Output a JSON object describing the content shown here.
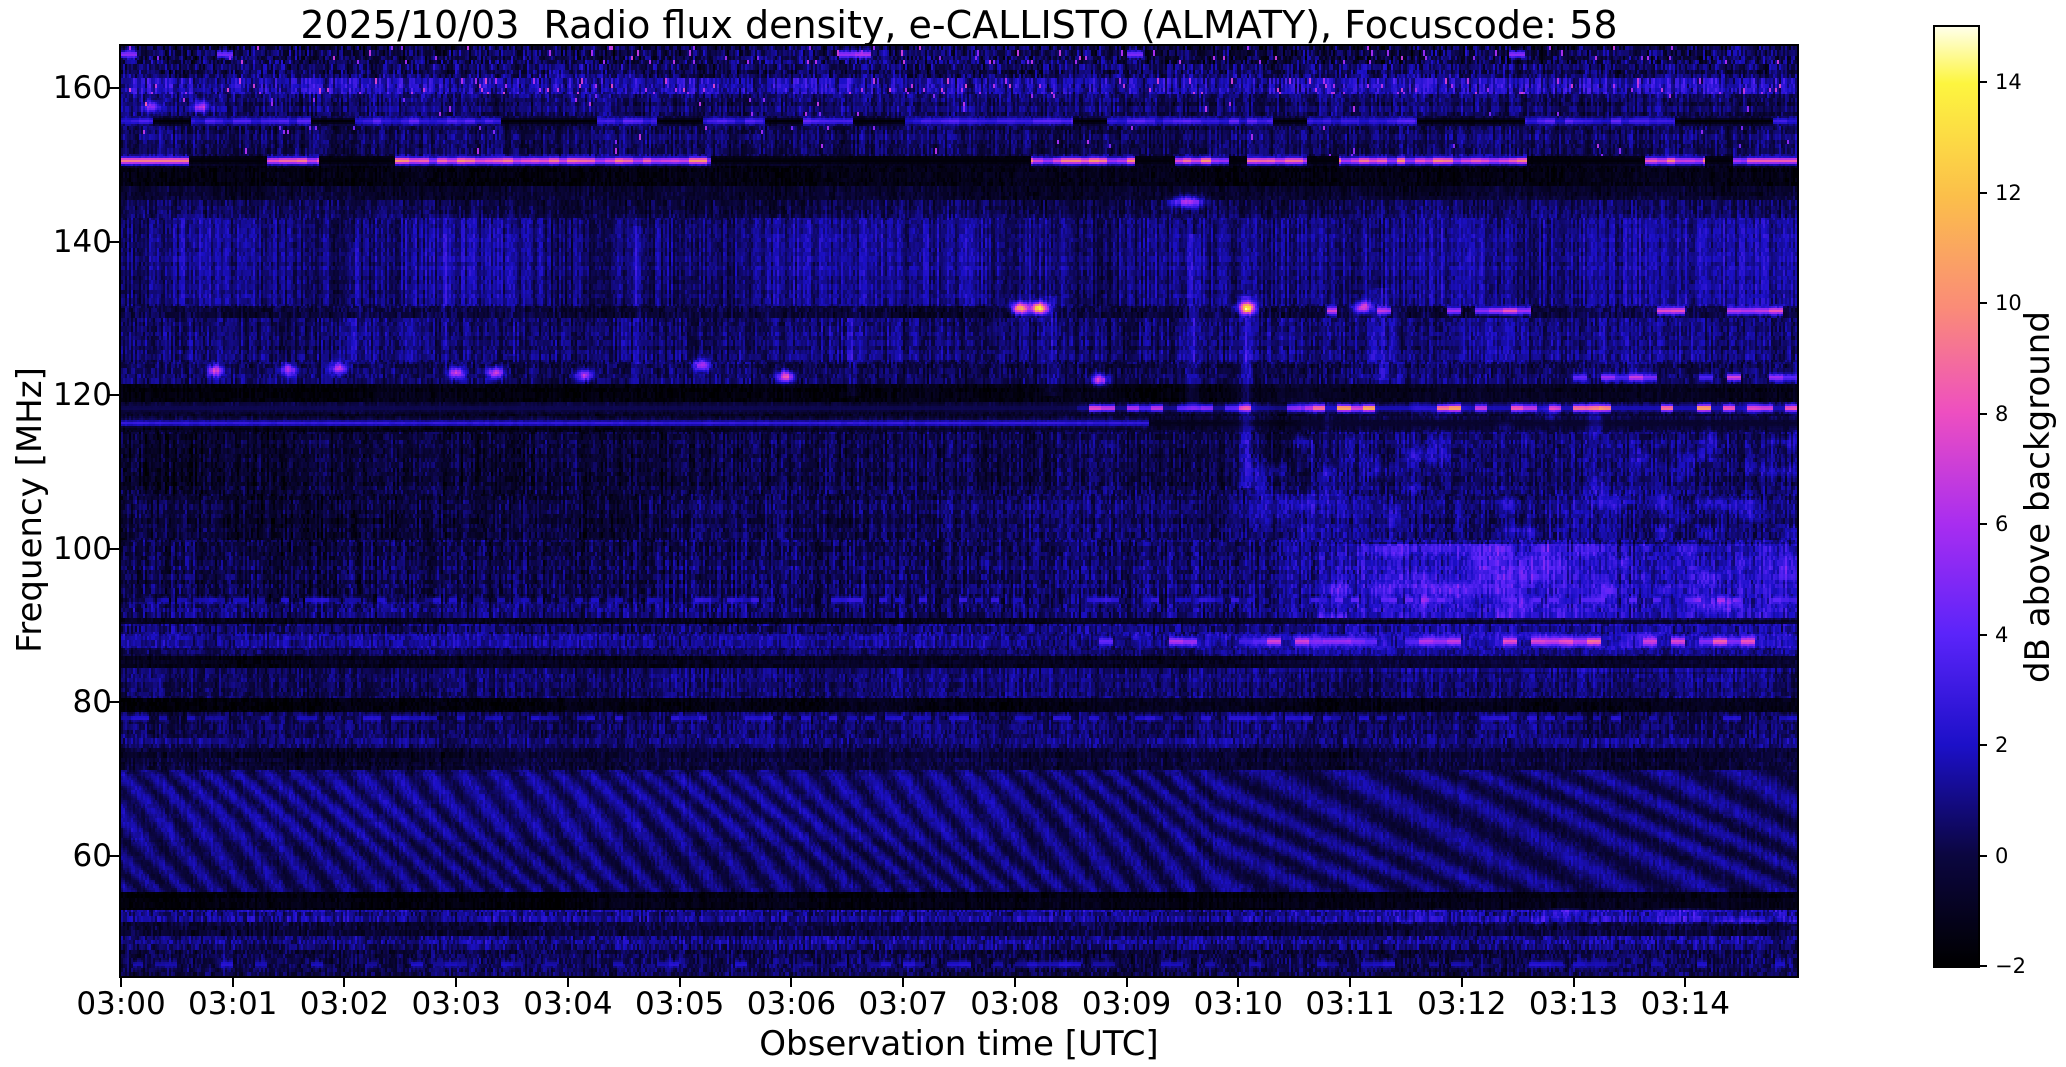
{
  "chart_data": {
    "type": "heatmap",
    "title": "2025/10/03  Radio flux density, e-CALLISTO (ALMATY), Focuscode: 58",
    "xlabel": "Observation time [UTC]",
    "ylabel": "Frequency [MHz]",
    "colorbar_label": "dB above background",
    "x_ticks": [
      "03:00",
      "03:01",
      "03:02",
      "03:03",
      "03:04",
      "03:05",
      "03:06",
      "03:07",
      "03:08",
      "03:09",
      "03:10",
      "03:11",
      "03:12",
      "03:13",
      "03:14"
    ],
    "y_ticks": [
      160,
      140,
      120,
      100,
      80,
      60
    ],
    "colorbar_ticks": [
      {
        "label": "14",
        "value": 14
      },
      {
        "label": "12",
        "value": 12
      },
      {
        "label": "10",
        "value": 10
      },
      {
        "label": "8",
        "value": 8
      },
      {
        "label": "6",
        "value": 6
      },
      {
        "label": "4",
        "value": 4
      },
      {
        "label": "2",
        "value": 2
      },
      {
        "label": "0",
        "value": 0
      },
      {
        "label": "−2",
        "value": -2
      }
    ],
    "time_range_min": [
      0,
      15
    ],
    "freq_range_mhz": [
      44.3,
      165.5
    ],
    "value_range_db": [
      -2,
      15
    ],
    "legend_position": "right-colorbar",
    "grid": false,
    "colormap_stops": [
      [
        0,
        "#000000"
      ],
      [
        0.118,
        "#0b0640"
      ],
      [
        0.235,
        "#1c10c8"
      ],
      [
        0.353,
        "#5b24fa"
      ],
      [
        0.47,
        "#a82df0"
      ],
      [
        0.59,
        "#ee4fc0"
      ],
      [
        0.7,
        "#fa8b78"
      ],
      [
        0.82,
        "#fbbf4a"
      ],
      [
        0.94,
        "#fdf53f"
      ],
      [
        1,
        "#ffffe8"
      ]
    ],
    "spectrogram_model": {
      "channel_mhz": 0.61,
      "bands": [
        {
          "f0": 163.2,
          "f1": 165.5,
          "base": 0.15,
          "col": 0.9,
          "pix": 1.3,
          "sp": {
            "p": 0.02,
            "v": 6.0
          }
        },
        {
          "f0": 161.3,
          "f1": 163.2,
          "base": 0.5,
          "col": 1.0,
          "pix": 1.0
        },
        {
          "f0": 159.3,
          "f1": 161.3,
          "base": 1.7,
          "col": 1.3,
          "pix": 0.8,
          "sp": {
            "p": 0.03,
            "v": 6.5
          }
        },
        {
          "f0": 156.4,
          "f1": 159.3,
          "base": 0.5,
          "col": 0.9,
          "pix": 0.7,
          "sp": {
            "p": 0.008,
            "v": 5.5
          }
        },
        {
          "f0": 155.0,
          "f1": 156.4,
          "base": 0.3,
          "col": 0.6,
          "pix": 0.5
        },
        {
          "f0": 151.2,
          "f1": 155.0,
          "base": 0.45,
          "col": 0.85,
          "pix": 0.7,
          "sp": {
            "p": 0.006,
            "v": 5.5
          }
        },
        {
          "f0": 149.8,
          "f1": 151.2,
          "base": -1.0,
          "col": 0.3,
          "pix": 0.4
        },
        {
          "f0": 147.3,
          "f1": 149.8,
          "base": -1.5,
          "col": 0.35,
          "pix": 0.45
        },
        {
          "f0": 145.5,
          "f1": 147.3,
          "base": -0.4,
          "col": 0.5,
          "pix": 0.5
        },
        {
          "f0": 143.0,
          "f1": 145.5,
          "base": 0.25,
          "col": 0.8,
          "pix": 0.6
        },
        {
          "f0": 131.6,
          "f1": 143.0,
          "base": 0.9,
          "col": 1.0,
          "pix": 0.6,
          "slow": 0.5
        },
        {
          "f0": 130.1,
          "f1": 131.6,
          "base": -0.2,
          "col": 0.6,
          "pix": 0.7
        },
        {
          "f0": 124.2,
          "f1": 130.1,
          "base": 0.7,
          "col": 0.9,
          "pix": 0.7
        },
        {
          "f0": 121.5,
          "f1": 124.2,
          "base": 0.2,
          "col": 0.7,
          "pix": 0.8
        },
        {
          "f0": 119.0,
          "f1": 121.5,
          "base": -1.5,
          "col": 0.3,
          "pix": 0.4
        },
        {
          "f0": 117.5,
          "f1": 119.0,
          "base": -0.5,
          "col": 0.4,
          "pix": 0.5
        },
        {
          "f0": 115.2,
          "f1": 117.5,
          "base": -0.5,
          "col": 0.4,
          "pix": 0.5
        },
        {
          "f0": 107.0,
          "f1": 115.2,
          "base": 0.15,
          "col": 0.8,
          "pix": 0.8
        },
        {
          "f0": 101.0,
          "f1": 107.0,
          "base": 0.35,
          "col": 0.8,
          "pix": 0.8
        },
        {
          "f0": 91.0,
          "f1": 101.0,
          "base": 0.55,
          "col": 0.9,
          "pix": 0.9
        },
        {
          "f0": 90.3,
          "f1": 91.0,
          "base": -1.0,
          "col": 0.3,
          "pix": 0.4
        },
        {
          "f0": 88.9,
          "f1": 90.3,
          "base": 0.8,
          "col": 0.8,
          "pix": 0.8
        },
        {
          "f0": 87.0,
          "f1": 88.9,
          "base": 1.0,
          "col": 0.7,
          "pix": 0.7
        },
        {
          "f0": 85.9,
          "f1": 87.0,
          "base": 0.4,
          "col": 0.6,
          "pix": 0.6
        },
        {
          "f0": 84.5,
          "f1": 85.9,
          "base": -1.1,
          "col": 0.3,
          "pix": 0.4
        },
        {
          "f0": 80.5,
          "f1": 84.5,
          "base": 0.5,
          "col": 0.7,
          "pix": 0.7
        },
        {
          "f0": 78.6,
          "f1": 80.5,
          "base": -1.2,
          "col": 0.3,
          "pix": 0.4
        },
        {
          "f0": 75.2,
          "f1": 78.6,
          "base": 0.5,
          "col": 0.7,
          "pix": 0.7
        },
        {
          "f0": 74.0,
          "f1": 75.2,
          "base": 0.9,
          "col": 0.6,
          "pix": 0.7
        },
        {
          "f0": 71.2,
          "f1": 74.0,
          "base": -0.3,
          "col": 0.5,
          "pix": 0.6
        },
        {
          "f0": 55.3,
          "f1": 71.2,
          "base": 0.6,
          "col": 0.3,
          "pix": 0.45,
          "ripple": true
        },
        {
          "f0": 53.0,
          "f1": 55.3,
          "base": -1.6,
          "col": 0.3,
          "pix": 0.35
        },
        {
          "f0": 51.3,
          "f1": 53.0,
          "base": 1.2,
          "col": 0.7,
          "pix": 1.0
        },
        {
          "f0": 49.6,
          "f1": 51.3,
          "base": -0.4,
          "col": 0.5,
          "pix": 0.7
        },
        {
          "f0": 47.8,
          "f1": 49.6,
          "base": 0.9,
          "col": 0.6,
          "pix": 1.0
        },
        {
          "f0": 44.3,
          "f1": 47.8,
          "base": 0.1,
          "col": 0.6,
          "pix": 0.9
        }
      ],
      "ripple": {
        "f0": 55.3,
        "fP": 4.5,
        "tP": 0.28,
        "tPLate": 0.6,
        "lateT": 9.8,
        "amp": 0.85,
        "wob": {
          "a": 1.2,
          "tk": 1.6,
          "fk": 0.33
        },
        "bright": {
          "f0": 62,
          "f1": 70.5,
          "t1": 8,
          "add": 0.3
        }
      },
      "lines": [
        {
          "f": 155.7,
          "hw": 0.5,
          "kind": "gapped",
          "vHi": 3.2,
          "vR": 1.2,
          "vLo": -1.8,
          "chunk": 2.2,
          "duty": 0.62,
          "seed": 11
        },
        {
          "f": 150.55,
          "hw": 0.55,
          "kind": "gapped",
          "vHi": 8.0,
          "vR": 2.5,
          "vLo": -1.7,
          "chunk": 2.6,
          "duty": 0.55,
          "seed": 12,
          "solid": [
            [
              0,
              0.6,
              9.5
            ],
            [
              14.55,
              15,
              8.5
            ]
          ]
        },
        {
          "f": 118.3,
          "hw": 0.5,
          "kind": "dashlate",
          "tOn": 8.55,
          "vEarly": 0.3,
          "vHi": 6.6,
          "vR": 2.8,
          "vLo": 1.3,
          "dash": 9,
          "duty": 0.55,
          "boostT": 10.6,
          "boost": 1.6,
          "seed": 13
        },
        {
          "f": 116.35,
          "hw": 0.45,
          "kind": "fade",
          "tOff": 9.2,
          "vEarly": 2.7,
          "vLate": -1.1,
          "seed": 14
        },
        {
          "f": 87.9,
          "hw": 0.6,
          "kind": "dashlate",
          "tOn": 8.7,
          "vEarly": null,
          "vHi": 5.4,
          "vR": 2.4,
          "vLo": null,
          "dash": 8,
          "duty": 0.5,
          "boostT": 12,
          "boost": 1.4,
          "seed": 15
        },
        {
          "f": 131.0,
          "hw": 0.55,
          "kind": "dashlate",
          "tOn": 10.8,
          "vEarly": null,
          "vHi": 6.0,
          "vR": 2.0,
          "vLo": null,
          "dash": 8,
          "duty": 0.4,
          "seed": 16
        },
        {
          "f": 122.3,
          "hw": 0.5,
          "kind": "dashlate",
          "tOn": 12.5,
          "vEarly": null,
          "vHi": 5.2,
          "vR": 2.0,
          "vLo": null,
          "dash": 8,
          "duty": 0.35,
          "seed": 17
        },
        {
          "f": 93.3,
          "hw": 0.45,
          "kind": "dots",
          "vHi": 2.6,
          "vR": 0.8,
          "duty": 0.5,
          "dash": 14,
          "seed": 18
        },
        {
          "f": 77.9,
          "hw": 0.4,
          "kind": "dots",
          "vHi": 2.3,
          "vR": 0.6,
          "duty": 0.45,
          "dash": 12,
          "seed": 19
        },
        {
          "f": 45.8,
          "hw": 0.5,
          "kind": "dots",
          "vHi": 1.9,
          "vR": 0.6,
          "duty": 0.4,
          "dash": 10,
          "seed": 20
        },
        {
          "f": 164.4,
          "hw": 0.5,
          "kind": "dots",
          "vHi": 5.8,
          "vR": 1.5,
          "duty": 0.1,
          "dash": 7,
          "seed": 21
        }
      ],
      "streaks": [
        {
          "t": 9.6,
          "f0": 118,
          "f1": 141,
          "dv": 1.3,
          "w": 0.045
        },
        {
          "t": 10.07,
          "f0": 108,
          "f1": 133,
          "dv": 1.8,
          "w": 0.04
        },
        {
          "t": 11.28,
          "f0": 122,
          "f1": 134,
          "dv": 1.0,
          "w": 0.05
        },
        {
          "t": 8.33,
          "f0": 120,
          "f1": 133,
          "dv": 1.0,
          "w": 0.05
        },
        {
          "t": 4.62,
          "f0": 124,
          "f1": 142,
          "dv": 0.9,
          "w": 0.035
        },
        {
          "t": 2.1,
          "f0": 126,
          "f1": 140,
          "dv": 0.7,
          "w": 0.03
        },
        {
          "t": 2.9,
          "f0": 126,
          "f1": 141,
          "dv": 0.7,
          "w": 0.03
        },
        {
          "t": 3.5,
          "f0": 125,
          "f1": 141,
          "dv": 0.7,
          "w": 0.03
        },
        {
          "t": 6.55,
          "f0": 120,
          "f1": 132,
          "dv": 0.8,
          "w": 0.04
        },
        {
          "t": 10.4,
          "f0": 101,
          "f1": 119,
          "dv": -0.7,
          "w": 0.09
        }
      ],
      "spots": [
        {
          "t": 8.05,
          "f": 131.3,
          "a": 12
        },
        {
          "t": 8.22,
          "f": 131.3,
          "a": 14
        },
        {
          "t": 10.08,
          "f": 131.3,
          "a": 13
        },
        {
          "t": 11.12,
          "f": 131.4,
          "a": 8
        },
        {
          "t": 5.95,
          "f": 122.4,
          "a": 8.5
        },
        {
          "t": 8.76,
          "f": 122.0,
          "a": 7
        },
        {
          "t": 0.85,
          "f": 123.2,
          "a": 6.5
        },
        {
          "t": 1.5,
          "f": 123.3,
          "a": 6
        },
        {
          "t": 1.95,
          "f": 123.5,
          "a": 6.5
        },
        {
          "t": 3.0,
          "f": 122.9,
          "a": 7
        },
        {
          "t": 3.35,
          "f": 122.9,
          "a": 7
        },
        {
          "t": 4.15,
          "f": 122.6,
          "a": 6
        },
        {
          "t": 5.2,
          "f": 123.9,
          "a": 6
        },
        {
          "t": 9.55,
          "f": 145.2,
          "a": 6.5,
          "st": 0.09
        },
        {
          "t": 0.28,
          "f": 157.6,
          "a": 5
        },
        {
          "t": 0.72,
          "f": 157.6,
          "a": 5.5
        }
      ],
      "enhancements": [
        {
          "t0": 9.8,
          "f0": 84,
          "f1": 121.5,
          "add": 0.55,
          "ramp": 0.8
        },
        {
          "t0": 10.6,
          "f0": 90.8,
          "f1": 100.5,
          "add": 0.9,
          "ramp": 0.5
        },
        {
          "t1": 6.0,
          "f0": 93,
          "f1": 116,
          "add": -0.65,
          "ramp": 1.5
        },
        {
          "t1": 5.0,
          "f0": 72,
          "f1": 87,
          "add": -0.25,
          "ramp": 2
        },
        {
          "t0": 9.8,
          "f0": 121.5,
          "f1": 146,
          "add": 0.3,
          "ramp": 1
        },
        {
          "t0": 10.4,
          "f0": 51,
          "f1": 53.2,
          "add": 0.4,
          "ramp": 0.5
        }
      ],
      "blotches": [
        {
          "t0": 10.7,
          "f0": 91,
          "f1": 100.5,
          "sT": 5.5,
          "sF": 0.55,
          "th": 0.55,
          "gain": 2.2,
          "seed": 31
        },
        {
          "t0": 10.1,
          "f0": 101,
          "f1": 119,
          "sT": 5.0,
          "sF": 0.5,
          "th": 0.62,
          "gain": 1.5,
          "seed": 47
        },
        {
          "t0": 10.4,
          "f0": 51.2,
          "f1": 53.2,
          "sT": 6.0,
          "sF": 0.8,
          "th": 0.6,
          "gain": 1.6,
          "seed": 63
        },
        {
          "t0": 8.6,
          "f0": 86.9,
          "f1": 89.2,
          "sT": 7.0,
          "sF": 0.8,
          "th": 0.5,
          "gain": 1.2,
          "seed": 77
        }
      ]
    }
  }
}
